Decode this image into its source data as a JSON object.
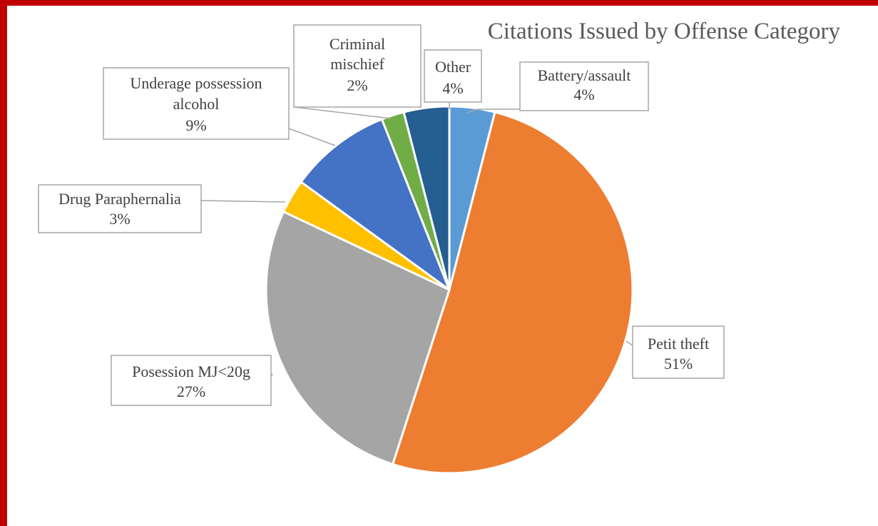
{
  "chart_data": {
    "type": "pie",
    "title": "Citations Issued by Offense Category",
    "legend": "none",
    "slices": [
      {
        "label": "Battery/assault",
        "value": 4,
        "pct_label": "4%",
        "color": "#5B9BD5",
        "label_lines": [
          "Battery/assault"
        ]
      },
      {
        "label": "Petit theft",
        "value": 51,
        "pct_label": "51%",
        "color": "#ED7D31",
        "label_lines": [
          "Petit theft"
        ]
      },
      {
        "label": "Posession MJ<20g",
        "value": 27,
        "pct_label": "27%",
        "color": "#A5A5A5",
        "label_lines": [
          "Posession MJ<20g"
        ]
      },
      {
        "label": "Drug Paraphernalia",
        "value": 3,
        "pct_label": "3%",
        "color": "#FFC000",
        "label_lines": [
          "Drug Paraphernalia"
        ]
      },
      {
        "label": "Underage possession alcohol",
        "value": 9,
        "pct_label": "9%",
        "color": "#4472C4",
        "label_lines": [
          "Underage possession",
          "alcohol"
        ]
      },
      {
        "label": "Criminal mischief",
        "value": 2,
        "pct_label": "2%",
        "color": "#70AD47",
        "label_lines": [
          "Criminal",
          "mischief"
        ]
      },
      {
        "label": "Other",
        "value": 4,
        "pct_label": "4%",
        "color": "#255E91",
        "label_lines": [
          "Other"
        ]
      }
    ]
  }
}
